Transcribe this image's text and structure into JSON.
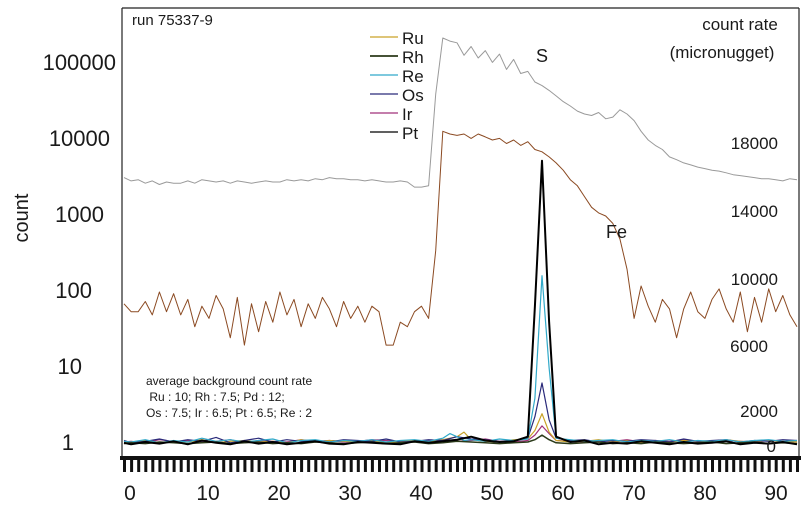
{
  "chart_data": {
    "type": "line",
    "run_label": "run 75337-9",
    "ylabel": "count",
    "y_scale": "log",
    "y_ticks": [
      "100000",
      "10000",
      "1000",
      "100",
      "10",
      "1"
    ],
    "y_tick_values": [
      100000,
      10000,
      1000,
      100,
      10,
      1
    ],
    "x_ticks": [
      "0",
      "10",
      "20",
      "30",
      "40",
      "50",
      "60",
      "70",
      "80",
      "90"
    ],
    "x_tick_values": [
      0,
      10,
      20,
      30,
      40,
      50,
      60,
      70,
      80,
      90
    ],
    "xlim": [
      -1,
      94
    ],
    "right_axis_title_lines": [
      "count rate",
      "(micronugget)"
    ],
    "right_ticks": [
      "18000",
      "14000",
      "10000",
      "6000",
      "2000",
      "0"
    ],
    "right_tick_values": [
      18000,
      14000,
      10000,
      6000,
      2000,
      0
    ],
    "right_ylim": [
      -500,
      20500
    ],
    "annotation_lines": [
      "average background count rate",
      " Ru : 10; Rh : 7.5; Pd : 12;",
      "Os : 7.5; Ir : 6.5; Pt : 6.5; Re : 2"
    ],
    "series_labels": {
      "S": "S",
      "Fe": "Fe"
    },
    "legend": [
      {
        "name": "Ru",
        "color": "#c9a227"
      },
      {
        "name": "Rh",
        "color": "#2b3a1a"
      },
      {
        "name": "Re",
        "color": "#31a9c9"
      },
      {
        "name": "Os",
        "color": "#2a2a7a"
      },
      {
        "name": "Ir",
        "color": "#a0327a"
      },
      {
        "name": "Pt",
        "color": "#000000"
      }
    ],
    "series": [
      {
        "name": "S",
        "color": "#9a9a9a",
        "axis": "left",
        "x": [
          -1,
          0,
          1,
          2,
          3,
          4,
          5,
          6,
          7,
          8,
          9,
          10,
          11,
          12,
          13,
          14,
          15,
          16,
          17,
          18,
          19,
          20,
          21,
          22,
          23,
          24,
          25,
          26,
          27,
          28,
          29,
          30,
          31,
          32,
          33,
          34,
          35,
          36,
          37,
          38,
          39,
          40,
          41,
          42,
          43,
          44,
          45,
          46,
          47,
          48,
          49,
          50,
          51,
          52,
          53,
          54,
          55,
          56,
          57,
          58,
          59,
          60,
          61,
          62,
          63,
          64,
          65,
          66,
          67,
          68,
          69,
          70,
          71,
          72,
          73,
          74,
          75,
          76,
          77,
          78,
          79,
          80,
          81,
          82,
          83,
          84,
          85,
          86,
          87,
          88,
          89,
          90,
          91,
          92,
          93,
          94
        ],
        "values": [
          3200,
          2900,
          3000,
          2700,
          2900,
          2600,
          2800,
          2700,
          2700,
          2900,
          2700,
          3000,
          2900,
          2800,
          2900,
          2700,
          2900,
          2800,
          2700,
          2800,
          2900,
          2800,
          2800,
          3000,
          2900,
          3000,
          2900,
          3100,
          3000,
          3200,
          3100,
          3100,
          3000,
          3000,
          2900,
          3000,
          2900,
          2800,
          2800,
          2900,
          2800,
          2400,
          2400,
          2500,
          40000,
          220000,
          200000,
          190000,
          130000,
          170000,
          120000,
          150000,
          105000,
          135000,
          85000,
          115000,
          75000,
          80000,
          58000,
          52000,
          45000,
          38000,
          32000,
          28000,
          24000,
          22000,
          21000,
          23000,
          19000,
          20000,
          25000,
          22000,
          18000,
          13000,
          10000,
          8500,
          7500,
          6000,
          5500,
          5000,
          4700,
          4400,
          4200,
          4000,
          3900,
          3700,
          3500,
          3400,
          3300,
          3200,
          3100,
          3100,
          3000,
          2900,
          3100,
          3000
        ]
      },
      {
        "name": "Fe",
        "color": "#8b4a22",
        "axis": "left",
        "x": [
          -1,
          0,
          1,
          2,
          3,
          4,
          5,
          6,
          7,
          8,
          9,
          10,
          11,
          12,
          13,
          14,
          15,
          16,
          17,
          18,
          19,
          20,
          21,
          22,
          23,
          24,
          25,
          26,
          27,
          28,
          29,
          30,
          31,
          32,
          33,
          34,
          35,
          36,
          37,
          38,
          39,
          40,
          41,
          42,
          43,
          44,
          45,
          46,
          47,
          48,
          49,
          50,
          51,
          52,
          53,
          54,
          55,
          56,
          57,
          58,
          59,
          60,
          61,
          62,
          63,
          64,
          65,
          66,
          67,
          68,
          69,
          70,
          71,
          72,
          73,
          74,
          75,
          76,
          77,
          78,
          79,
          80,
          81,
          82,
          83,
          84,
          85,
          86,
          87,
          88,
          89,
          90,
          91,
          92,
          93,
          94
        ],
        "values": [
          70,
          55,
          55,
          75,
          50,
          100,
          55,
          95,
          50,
          80,
          35,
          65,
          45,
          90,
          60,
          25,
          85,
          20,
          70,
          30,
          75,
          40,
          100,
          50,
          80,
          35,
          70,
          45,
          85,
          60,
          35,
          75,
          45,
          65,
          40,
          65,
          55,
          20,
          20,
          40,
          35,
          55,
          65,
          45,
          350,
          13000,
          12000,
          11500,
          12000,
          10500,
          12000,
          11000,
          10000,
          10500,
          9000,
          10000,
          8500,
          9500,
          7500,
          7000,
          6000,
          5000,
          4000,
          3000,
          2500,
          1800,
          1300,
          1100,
          1000,
          800,
          500,
          200,
          45,
          120,
          65,
          40,
          80,
          60,
          25,
          60,
          100,
          55,
          45,
          80,
          110,
          60,
          40,
          100,
          30,
          85,
          40,
          110,
          55,
          90,
          50,
          35
        ]
      },
      {
        "name": "Pt",
        "color": "#000000",
        "axis": "right",
        "x": [
          -1,
          0,
          2,
          4,
          6,
          8,
          10,
          12,
          14,
          16,
          18,
          20,
          22,
          24,
          26,
          28,
          30,
          32,
          34,
          36,
          38,
          40,
          42,
          44,
          46,
          48,
          50,
          52,
          54,
          56,
          57,
          58,
          59,
          60,
          62,
          64,
          66,
          68,
          70,
          72,
          74,
          76,
          78,
          80,
          82,
          84,
          86,
          88,
          90,
          92,
          94
        ],
        "values": [
          100,
          0,
          150,
          50,
          200,
          0,
          250,
          100,
          0,
          200,
          50,
          150,
          0,
          100,
          200,
          50,
          0,
          150,
          100,
          50,
          0,
          200,
          100,
          200,
          300,
          500,
          250,
          150,
          200,
          500,
          9000,
          18500,
          8000,
          500,
          150,
          250,
          0,
          100,
          50,
          200,
          100,
          0,
          150,
          50,
          100,
          200,
          0,
          100,
          50,
          150,
          0
        ]
      },
      {
        "name": "Re",
        "color": "#31a9c9",
        "axis": "right",
        "x": [
          -1,
          0,
          2,
          4,
          6,
          8,
          10,
          12,
          14,
          16,
          18,
          20,
          22,
          24,
          26,
          28,
          30,
          32,
          34,
          36,
          38,
          40,
          42,
          44,
          45,
          46,
          47,
          48,
          50,
          52,
          54,
          56,
          57,
          58,
          59,
          60,
          62,
          64,
          66,
          68,
          70,
          72,
          74,
          76,
          78,
          80,
          82,
          84,
          86,
          88,
          90,
          92,
          94
        ],
        "values": [
          200,
          150,
          300,
          100,
          250,
          150,
          400,
          200,
          300,
          150,
          250,
          350,
          100,
          250,
          300,
          150,
          250,
          200,
          300,
          150,
          250,
          300,
          200,
          400,
          700,
          500,
          250,
          300,
          200,
          350,
          250,
          350,
          3000,
          11000,
          5000,
          400,
          300,
          200,
          250,
          300,
          150,
          250,
          200,
          300,
          150,
          250,
          200,
          300,
          150,
          250,
          300,
          200,
          250
        ]
      },
      {
        "name": "Os",
        "color": "#2a2a7a",
        "axis": "right",
        "x": [
          -1,
          0,
          2,
          4,
          6,
          8,
          10,
          12,
          14,
          16,
          18,
          20,
          22,
          24,
          26,
          28,
          30,
          32,
          34,
          36,
          38,
          40,
          42,
          44,
          46,
          48,
          50,
          52,
          54,
          56,
          57,
          58,
          59,
          60,
          62,
          64,
          66,
          68,
          70,
          72,
          74,
          76,
          78,
          80,
          82,
          84,
          86,
          88,
          90,
          92,
          94
        ],
        "values": [
          250,
          100,
          200,
          350,
          150,
          300,
          200,
          450,
          100,
          250,
          400,
          150,
          300,
          200,
          250,
          150,
          300,
          250,
          200,
          350,
          150,
          200,
          300,
          250,
          500,
          350,
          300,
          200,
          250,
          400,
          1800,
          4000,
          1600,
          400,
          250,
          300,
          150,
          250,
          200,
          300,
          250,
          150,
          350,
          200,
          250,
          300,
          150,
          250,
          200,
          300,
          250
        ]
      },
      {
        "name": "Ir",
        "color": "#a0327a",
        "axis": "right",
        "x": [
          -1,
          0,
          2,
          4,
          6,
          8,
          10,
          12,
          14,
          16,
          18,
          20,
          22,
          24,
          26,
          28,
          30,
          32,
          34,
          36,
          38,
          40,
          42,
          44,
          46,
          48,
          50,
          52,
          54,
          56,
          57,
          58,
          59,
          60,
          62,
          64,
          66,
          68,
          70,
          72,
          74,
          76,
          78,
          80,
          82,
          84,
          86,
          88,
          90,
          92,
          94
        ],
        "values": [
          150,
          200,
          100,
          300,
          200,
          250,
          150,
          200,
          300,
          100,
          250,
          200,
          150,
          300,
          200,
          250,
          150,
          200,
          300,
          250,
          150,
          200,
          250,
          300,
          200,
          250,
          350,
          200,
          150,
          250,
          600,
          1200,
          700,
          250,
          200,
          150,
          250,
          200,
          300,
          150,
          250,
          200,
          300,
          150,
          200,
          250,
          200,
          150,
          250,
          200,
          150
        ]
      },
      {
        "name": "Ru",
        "color": "#c9a227",
        "axis": "right",
        "x": [
          -1,
          0,
          2,
          4,
          6,
          8,
          10,
          12,
          14,
          16,
          18,
          20,
          22,
          24,
          26,
          28,
          30,
          32,
          34,
          36,
          38,
          40,
          42,
          44,
          46,
          47,
          48,
          50,
          52,
          54,
          56,
          57,
          58,
          59,
          60,
          62,
          64,
          66,
          68,
          70,
          72,
          74,
          76,
          78,
          80,
          82,
          84,
          86,
          88,
          90,
          92,
          94
        ],
        "values": [
          100,
          150,
          250,
          100,
          200,
          150,
          300,
          100,
          200,
          250,
          150,
          200,
          100,
          300,
          150,
          250,
          200,
          150,
          250,
          100,
          200,
          250,
          150,
          300,
          500,
          800,
          300,
          200,
          150,
          300,
          350,
          900,
          2000,
          800,
          250,
          150,
          200,
          300,
          150,
          250,
          100,
          200,
          150,
          250,
          200,
          150,
          300,
          200,
          150,
          250,
          200,
          150
        ]
      },
      {
        "name": "Rh",
        "color": "#2b3a1a",
        "axis": "right",
        "x": [
          -1,
          0,
          2,
          4,
          6,
          8,
          10,
          12,
          14,
          16,
          18,
          20,
          22,
          24,
          26,
          28,
          30,
          32,
          34,
          36,
          38,
          40,
          42,
          44,
          46,
          48,
          50,
          52,
          54,
          56,
          57,
          58,
          59,
          60,
          62,
          64,
          66,
          68,
          70,
          72,
          74,
          76,
          78,
          80,
          82,
          84,
          86,
          88,
          90,
          92,
          94
        ],
        "values": [
          50,
          100,
          50,
          150,
          100,
          50,
          100,
          150,
          50,
          100,
          150,
          50,
          100,
          50,
          150,
          100,
          50,
          100,
          150,
          50,
          100,
          150,
          50,
          100,
          200,
          150,
          100,
          50,
          100,
          150,
          300,
          600,
          300,
          100,
          50,
          100,
          150,
          50,
          100,
          50,
          150,
          100,
          50,
          100,
          150,
          50,
          100,
          150,
          50,
          100,
          50
        ]
      }
    ]
  }
}
